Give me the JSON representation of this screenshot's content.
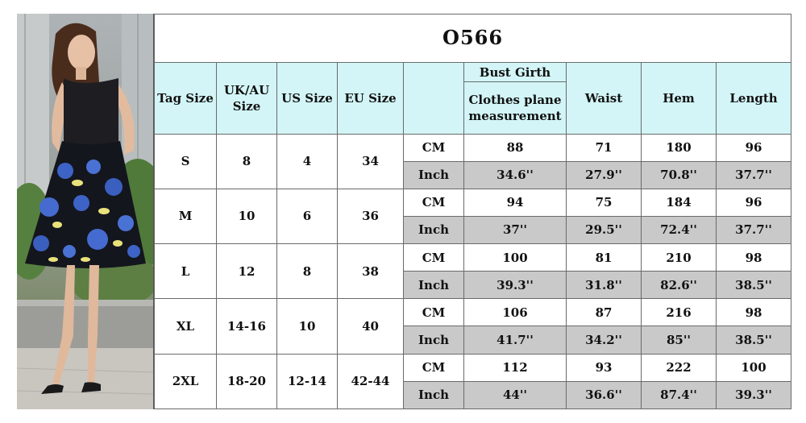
{
  "title": "O566",
  "headers": {
    "tag_size": "Tag Size",
    "uk_au_line1": "UK/AU",
    "uk_au_line2": "Size",
    "us_size": "US Size",
    "eu_size": "EU Size",
    "bust_girth": "Bust Girth",
    "bust_sub_line1": "Clothes plane",
    "bust_sub_line2": "measurement",
    "waist": "Waist",
    "hem": "Hem",
    "length": "Length"
  },
  "rows": [
    {
      "tag": "S",
      "ukau": "8",
      "us": "4",
      "eu": "34",
      "cm": {
        "unit": "CM",
        "bust": "88",
        "waist": "71",
        "hem": "180",
        "length": "96"
      },
      "inch": {
        "unit": "Inch",
        "bust": "34.6''",
        "waist": "27.9''",
        "hem": "70.8''",
        "length": "37.7''"
      }
    },
    {
      "tag": "M",
      "ukau": "10",
      "us": "6",
      "eu": "36",
      "cm": {
        "unit": "CM",
        "bust": "94",
        "waist": "75",
        "hem": "184",
        "length": "96"
      },
      "inch": {
        "unit": "Inch",
        "bust": "37''",
        "waist": "29.5''",
        "hem": "72.4''",
        "length": "37.7''"
      }
    },
    {
      "tag": "L",
      "ukau": "12",
      "us": "8",
      "eu": "38",
      "cm": {
        "unit": "CM",
        "bust": "100",
        "waist": "81",
        "hem": "210",
        "length": "98"
      },
      "inch": {
        "unit": "Inch",
        "bust": "39.3''",
        "waist": "31.8''",
        "hem": "82.6''",
        "length": "38.5''"
      }
    },
    {
      "tag": "XL",
      "ukau": "14-16",
      "us": "10",
      "eu": "40",
      "cm": {
        "unit": "CM",
        "bust": "106",
        "waist": "87",
        "hem": "216",
        "length": "98"
      },
      "inch": {
        "unit": "Inch",
        "bust": "41.7''",
        "waist": "34.2''",
        "hem": "85''",
        "length": "38.5''"
      }
    },
    {
      "tag": "2XL",
      "ukau": "18-20",
      "us": "12-14",
      "eu": "42-44",
      "cm": {
        "unit": "CM",
        "bust": "112",
        "waist": "93",
        "hem": "222",
        "length": "100"
      },
      "inch": {
        "unit": "Inch",
        "bust": "44''",
        "waist": "36.6''",
        "hem": "87.4''",
        "length": "39.3''"
      }
    }
  ],
  "colors": {
    "header_bg": "#d3f5f7",
    "inch_row_bg": "#c9c9c9",
    "border": "#6a6a6a"
  }
}
